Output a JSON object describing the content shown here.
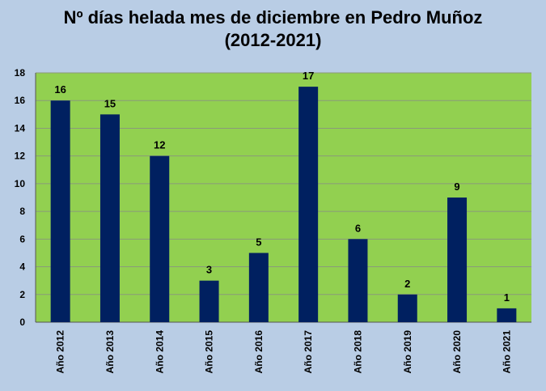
{
  "chart_data": {
    "type": "bar",
    "title_line1": "Nº días helada mes de diciembre en Pedro Muñoz",
    "title_line2": "(2012-2021)",
    "categories": [
      "Año 2012",
      "Año 2013",
      "Año 2014",
      "Año 2015",
      "Año 2016",
      "Año 2017",
      "Año 2018",
      "Año 2019",
      "Año 2020",
      "Año 2021"
    ],
    "values": [
      16,
      15,
      12,
      3,
      5,
      17,
      6,
      2,
      9,
      1
    ],
    "ylim": [
      0,
      18
    ],
    "yticks": [
      0,
      2,
      4,
      6,
      8,
      10,
      12,
      14,
      16,
      18
    ],
    "grid": true,
    "legend": "none",
    "colors": {
      "background": "#b9cde5",
      "plot_area": "#92d050",
      "bar": "#002060",
      "gridline": "#8a9a7a",
      "text": "#000000"
    }
  }
}
